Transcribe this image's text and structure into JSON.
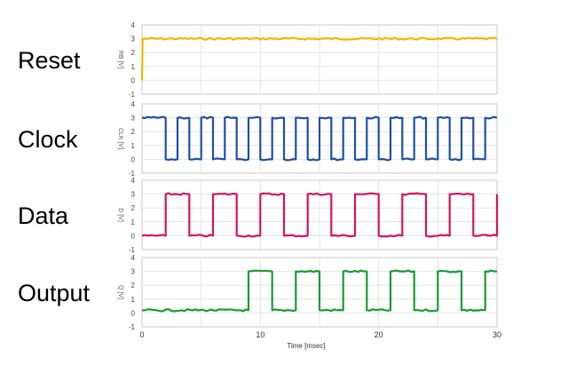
{
  "chart_data": {
    "type": "line",
    "xlabel": "Time [msec]",
    "xlim": [
      0,
      30
    ],
    "xticks": [
      "0",
      "10",
      "20",
      "30"
    ],
    "ylim": [
      -1,
      4
    ],
    "yticks": [
      "-1",
      "0",
      "1",
      "2",
      "3",
      "4"
    ],
    "grid": true,
    "panels": [
      {
        "name": "Reset",
        "ylabel": "RB [V]",
        "color": "#f2b705",
        "points": [
          [
            0,
            0
          ],
          [
            0.05,
            3
          ],
          [
            30,
            3
          ]
        ]
      },
      {
        "name": "Clock",
        "ylabel": "CLK [V]",
        "color": "#1f4fa8",
        "points": [
          [
            0,
            3
          ],
          [
            2,
            3
          ],
          [
            2,
            0
          ],
          [
            3,
            0
          ],
          [
            3,
            3
          ],
          [
            4,
            3
          ],
          [
            4,
            0
          ],
          [
            5,
            0
          ],
          [
            5,
            3
          ],
          [
            6,
            3
          ],
          [
            6,
            0
          ],
          [
            7,
            0
          ],
          [
            7,
            3
          ],
          [
            8,
            3
          ],
          [
            8,
            0
          ],
          [
            9,
            0
          ],
          [
            9,
            3
          ],
          [
            10,
            3
          ],
          [
            10,
            0
          ],
          [
            11,
            0
          ],
          [
            11,
            3
          ],
          [
            12,
            3
          ],
          [
            12,
            0
          ],
          [
            13,
            0
          ],
          [
            13,
            3
          ],
          [
            14,
            3
          ],
          [
            14,
            0
          ],
          [
            15,
            0
          ],
          [
            15,
            3
          ],
          [
            16,
            3
          ],
          [
            16,
            0
          ],
          [
            17,
            0
          ],
          [
            17,
            3
          ],
          [
            18,
            3
          ],
          [
            18,
            0
          ],
          [
            19,
            0
          ],
          [
            19,
            3
          ],
          [
            20,
            3
          ],
          [
            20,
            0
          ],
          [
            21,
            0
          ],
          [
            21,
            3
          ],
          [
            22,
            3
          ],
          [
            22,
            0
          ],
          [
            23,
            0
          ],
          [
            23,
            3
          ],
          [
            24,
            3
          ],
          [
            24,
            0
          ],
          [
            25,
            0
          ],
          [
            25,
            3
          ],
          [
            26,
            3
          ],
          [
            26,
            0
          ],
          [
            27,
            0
          ],
          [
            27,
            3
          ],
          [
            28,
            3
          ],
          [
            28,
            0
          ],
          [
            29,
            0
          ],
          [
            29,
            3
          ],
          [
            30,
            3
          ]
        ]
      },
      {
        "name": "Data",
        "ylabel": "D [V]",
        "color": "#d6145a",
        "points": [
          [
            0,
            0
          ],
          [
            2,
            0
          ],
          [
            2,
            3
          ],
          [
            4,
            3
          ],
          [
            4,
            0
          ],
          [
            6,
            0
          ],
          [
            6,
            3
          ],
          [
            8,
            3
          ],
          [
            8,
            0
          ],
          [
            10,
            0
          ],
          [
            10,
            3
          ],
          [
            12,
            3
          ],
          [
            12,
            0
          ],
          [
            14,
            0
          ],
          [
            14,
            3
          ],
          [
            16,
            3
          ],
          [
            16,
            0
          ],
          [
            18,
            0
          ],
          [
            18,
            3
          ],
          [
            20,
            3
          ],
          [
            20,
            0
          ],
          [
            22,
            0
          ],
          [
            22,
            3
          ],
          [
            24,
            3
          ],
          [
            24,
            0
          ],
          [
            26,
            0
          ],
          [
            26,
            3
          ],
          [
            28,
            3
          ],
          [
            28,
            0
          ],
          [
            30,
            0
          ],
          [
            30,
            3
          ]
        ]
      },
      {
        "name": "Output",
        "ylabel": "Q [V]",
        "color": "#1a9a35",
        "points": [
          [
            0,
            0.2
          ],
          [
            9,
            0.2
          ],
          [
            9,
            3
          ],
          [
            11,
            3
          ],
          [
            11,
            0.2
          ],
          [
            13,
            0.2
          ],
          [
            13,
            3
          ],
          [
            15,
            3
          ],
          [
            15,
            0.2
          ],
          [
            17,
            0.2
          ],
          [
            17,
            3
          ],
          [
            19,
            3
          ],
          [
            19,
            0.2
          ],
          [
            21,
            0.2
          ],
          [
            21,
            3
          ],
          [
            23,
            3
          ],
          [
            23,
            0.2
          ],
          [
            25,
            0.2
          ],
          [
            25,
            3
          ],
          [
            27,
            3
          ],
          [
            27,
            0.2
          ],
          [
            29,
            0.2
          ],
          [
            29,
            3
          ],
          [
            30,
            3
          ]
        ]
      }
    ]
  }
}
